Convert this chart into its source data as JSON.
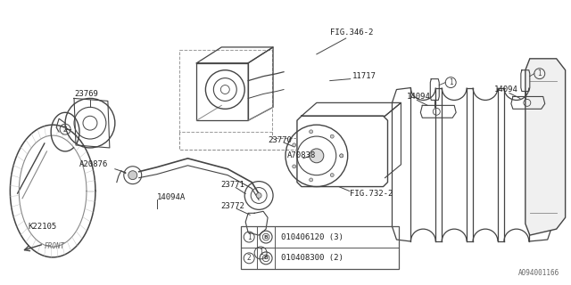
{
  "bg_color": "#ffffff",
  "fig_width": 6.4,
  "fig_height": 3.2,
  "dpi": 100,
  "watermark": "A094001166",
  "line_color": "#444444",
  "light_line": "#888888",
  "legend_items": [
    {
      "num": "1",
      "text": "010406120 (3)"
    },
    {
      "num": "2",
      "text": "010408300 (2)"
    }
  ]
}
